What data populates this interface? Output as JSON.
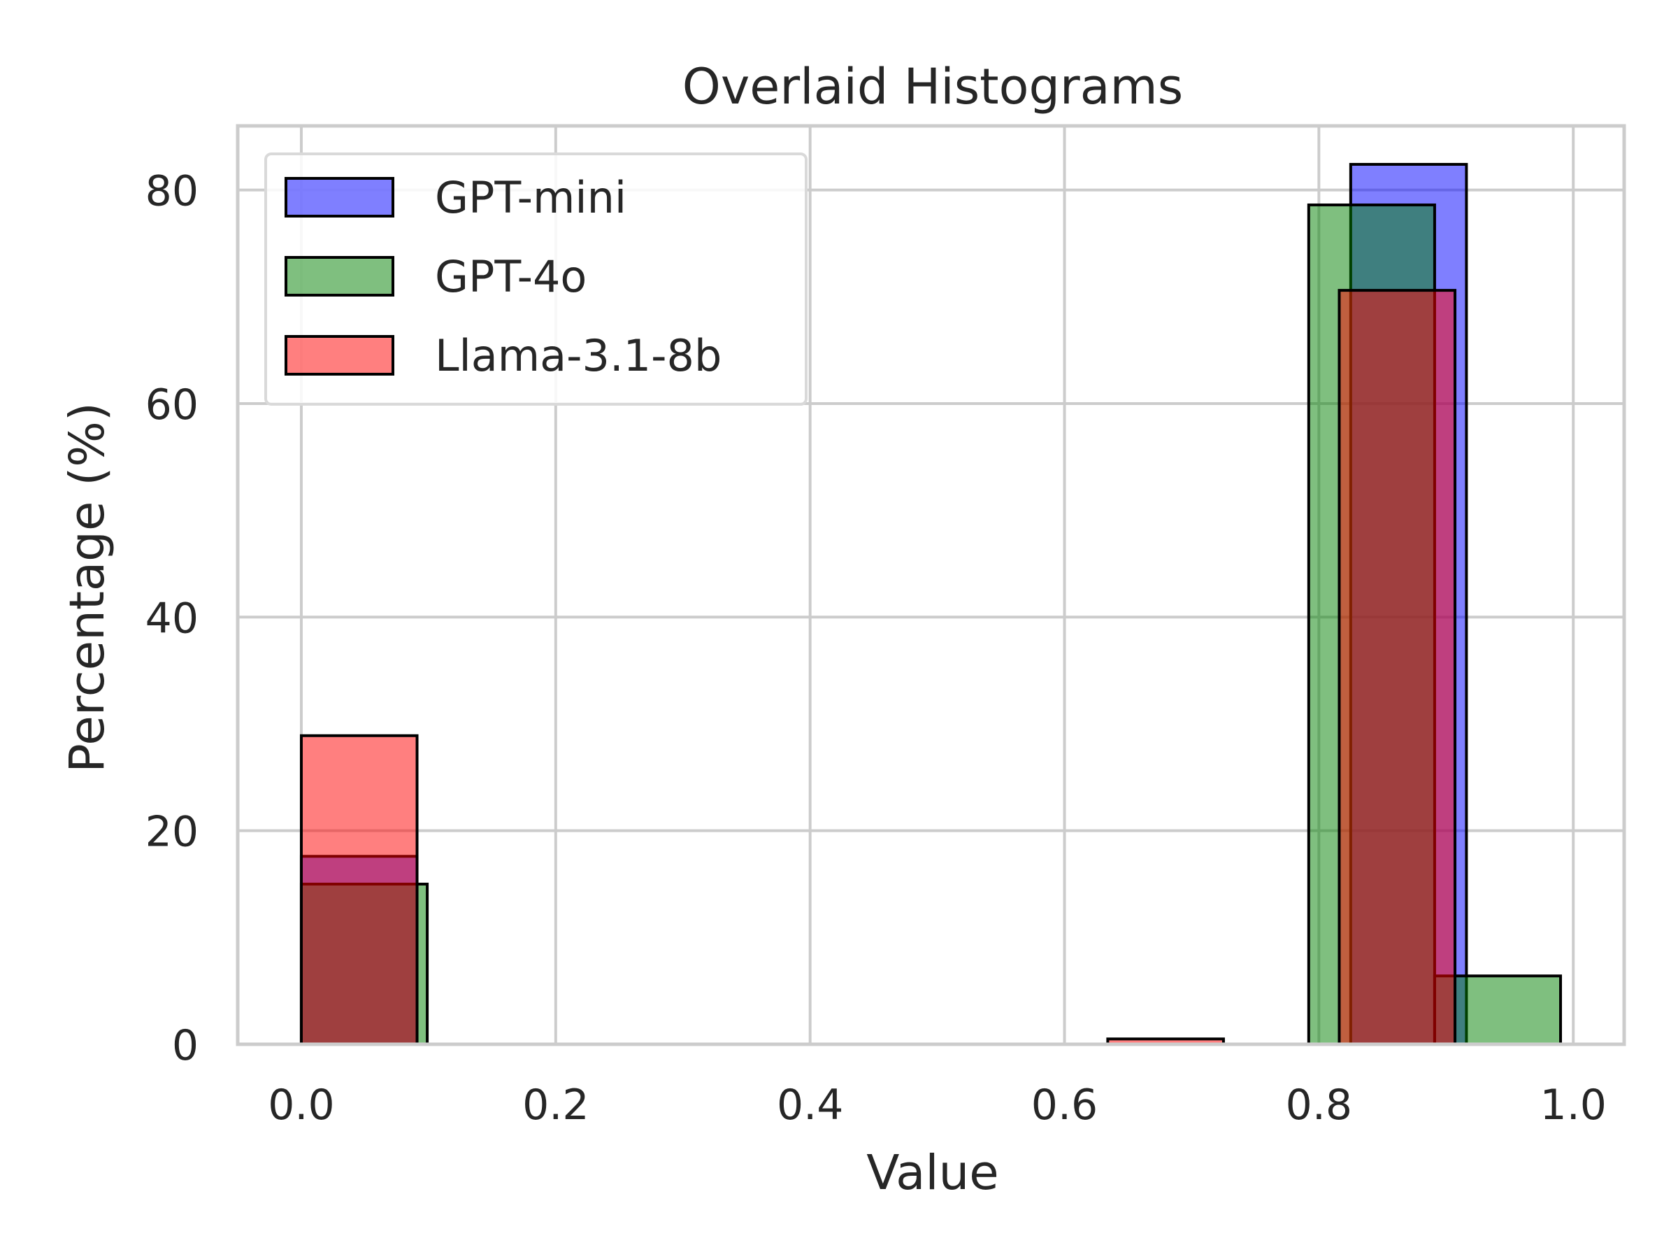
{
  "chart_data": {
    "type": "bar",
    "subtype": "overlaid-histogram",
    "title": "Overlaid Histograms",
    "xlabel": "Value",
    "ylabel": "Percentage (%)",
    "xlim": [
      -0.05,
      1.04
    ],
    "ylim": [
      0,
      86
    ],
    "xticks": [
      0.0,
      0.2,
      0.4,
      0.6,
      0.8,
      1.0
    ],
    "xtick_labels": [
      "0.0",
      "0.2",
      "0.4",
      "0.6",
      "0.8",
      "1.0"
    ],
    "yticks": [
      0,
      20,
      40,
      60,
      80
    ],
    "ytick_labels": [
      "0",
      "20",
      "40",
      "60",
      "80"
    ],
    "grid": true,
    "legend_position": "top-left",
    "series": [
      {
        "name": "GPT-mini",
        "color": "#0000ff",
        "alpha": 0.5,
        "bins": [
          {
            "x0": 0.0,
            "x1": 0.091,
            "value": 17.6
          },
          {
            "x0": 0.825,
            "x1": 0.916,
            "value": 82.4
          }
        ]
      },
      {
        "name": "GPT-4o",
        "color": "#008000",
        "alpha": 0.5,
        "bins": [
          {
            "x0": 0.0,
            "x1": 0.099,
            "value": 15.0
          },
          {
            "x0": 0.792,
            "x1": 0.891,
            "value": 78.6
          },
          {
            "x0": 0.891,
            "x1": 0.99,
            "value": 6.4
          }
        ]
      },
      {
        "name": "Llama-3.1-8b",
        "color": "#ff0000",
        "alpha": 0.5,
        "bins": [
          {
            "x0": 0.0,
            "x1": 0.091,
            "value": 28.9
          },
          {
            "x0": 0.634,
            "x1": 0.725,
            "value": 0.5
          },
          {
            "x0": 0.816,
            "x1": 0.907,
            "value": 70.6
          }
        ]
      }
    ]
  }
}
